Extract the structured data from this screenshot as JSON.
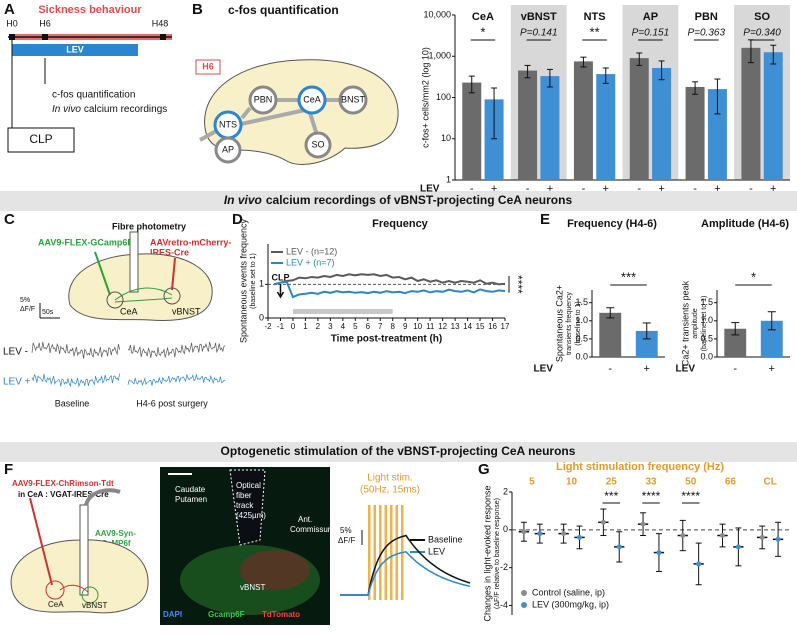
{
  "panels": {
    "A": {
      "letter": "A",
      "title": "Sickness behaviour",
      "timepoints": [
        "H0",
        "H6",
        "H48"
      ],
      "treatment": "LEV",
      "readout": "c-fos quantification",
      "readout_2_emphasis": "In vivo",
      "readout_2": "calcium recordings",
      "model": "CLP"
    },
    "B": {
      "letter": "B",
      "title": "c-fos quantification",
      "timepoint": "H6",
      "regions": [
        "NTS",
        "PBN",
        "CeA",
        "BNST",
        "AP",
        "SO"
      ]
    },
    "C": {
      "letter": "C",
      "method": "Fibre photometry",
      "virus_1": "AAV9-FLEX-GCamp6F",
      "virus_2": "AAVretro-mCherry-",
      "virus_2_line_2": "IRES-Cre",
      "regions": [
        "CeA",
        "vBNST"
      ],
      "scale_y": "5%",
      "scale_y_unit": "ΔF/F",
      "scale_x": "50s",
      "rows": [
        "LEV -",
        "LEV +"
      ],
      "columns": [
        "Baseline",
        "H4-6 post surgery"
      ]
    },
    "D": {
      "letter": "D"
    },
    "E": {
      "letter": "E"
    },
    "F": {
      "letter": "F",
      "virus_1": "AAV9-FLEX-ChRimson-Tdt",
      "virus_1_target": "in CeA : VGAT-IRES-Cre",
      "virus_2": "AAV9-Syn-",
      "virus_2_line_2": "GCaMP6f",
      "regions": [
        "CeA",
        "vBNST"
      ],
      "image_labels": [
        "Caudate",
        "Putamen",
        "Optical",
        "fiber",
        "track",
        "(425µm)",
        "Ant.",
        "Commissure",
        "vBNST"
      ],
      "stains": [
        "DAPI",
        "Gcamp6F",
        "TdTomato"
      ],
      "stim": "Light stim.",
      "stim_params": "(50Hz, 15ms)",
      "scale_y": "5%",
      "scale_y_unit": "ΔF/F",
      "legend": [
        "Baseline",
        "LEV"
      ]
    },
    "G": {
      "letter": "G"
    }
  },
  "sections": [
    {
      "emphasis": "In vivo",
      "text": "calcium recordings of vBNST-projecting CeA neurons"
    },
    {
      "text": "Optogenetic stimulation of the vBNST-projecting CeA neurons"
    }
  ],
  "chart_data": [
    {
      "type": "bar",
      "ylabel": "c-fos+ cells/mm2 (log 10)",
      "log_scale": true,
      "categories": [
        "CeA",
        "vBNST",
        "NTS",
        "AP",
        "PBN",
        "SO"
      ],
      "series": [
        {
          "name": "-",
          "color": "#6b6b6b",
          "values": [
            230,
            450,
            750,
            900,
            180,
            1600
          ],
          "errors": [
            100,
            150,
            200,
            300,
            60,
            900
          ]
        },
        {
          "name": "+",
          "color": "#3f8fd4",
          "values": [
            90,
            330,
            370,
            520,
            160,
            1250
          ],
          "errors": [
            80,
            150,
            150,
            250,
            120,
            600
          ]
        }
      ],
      "significance": [
        "*",
        "P=0.141",
        "**",
        "P=0.151",
        "P=0.363",
        "P=0.340"
      ],
      "shaded": [
        false,
        true,
        false,
        true,
        false,
        true
      ],
      "xlabel": "LEV",
      "ylim": [
        1,
        10000
      ],
      "yticks": [
        1,
        10,
        100,
        {
          "value": 1000,
          "label": "1,000"
        },
        {
          "value": 10000,
          "label": "10,000"
        }
      ]
    },
    {
      "type": "line",
      "title": "Frequency",
      "ylabel": "Spontaneous events frequency",
      "ylabel_note": "(baseline set to 1)",
      "xlabel": "Time post-treatment (h)",
      "x": [
        -1.5,
        -1,
        -0.5,
        0,
        0.5,
        1,
        1.5,
        2,
        2.5,
        3,
        3.5,
        4,
        4.5,
        5,
        5.5,
        6,
        6.5,
        7,
        7.5,
        8,
        8.5,
        9,
        9.5,
        10,
        10.5,
        11,
        11.5,
        12,
        12.5,
        13,
        13.5,
        14,
        14.5,
        15,
        15.5,
        16,
        16.5,
        17
      ],
      "series": [
        {
          "name": "LEV - (n=12)",
          "color": "#5a5a5a",
          "values": [
            1.0,
            1.05,
            1.1,
            1.12,
            1.2,
            1.18,
            1.22,
            1.2,
            1.25,
            1.22,
            1.28,
            1.25,
            1.3,
            1.27,
            1.3,
            1.28,
            1.3,
            1.25,
            1.28,
            1.2,
            1.22,
            1.15,
            1.2,
            1.1,
            1.15,
            1.08,
            1.12,
            1.05,
            1.1,
            1.05,
            1.1,
            1.08,
            1.05,
            1.12,
            1.02,
            1.05,
            1.0,
            1.02
          ]
        },
        {
          "name": "LEV + (n=7)",
          "color": "#2b86c5",
          "values": [
            1.0,
            1.05,
            1.08,
            0.62,
            0.7,
            0.72,
            0.75,
            0.72,
            0.78,
            0.75,
            0.8,
            0.76,
            0.78,
            0.75,
            0.77,
            0.74,
            0.78,
            0.75,
            0.8,
            0.76,
            0.78,
            0.74,
            0.8,
            0.78,
            0.82,
            0.76,
            0.8,
            0.78,
            0.84,
            0.8,
            0.78,
            0.82,
            0.76,
            0.85,
            0.8,
            0.78,
            0.82,
            0.8
          ]
        }
      ],
      "xlim": [
        -2,
        17
      ],
      "xticks": [
        -2,
        -1,
        0,
        1,
        2,
        3,
        4,
        5,
        6,
        7,
        8,
        9,
        10,
        11,
        12,
        13,
        14,
        15,
        16,
        17
      ],
      "ylim": [
        0,
        2.2
      ],
      "yticks": [
        0,
        1
      ],
      "reference_line": 1,
      "shade": [
        0,
        8
      ],
      "event": {
        "label": "CLP",
        "x": -1
      },
      "significance": "****"
    },
    {
      "type": "bar",
      "title": "Frequency (H4-6)",
      "ylabel": "Spontaneous Ca2+",
      "ylabel_note": "transients frequency",
      "ylabel_note_2": "(baseline to 1)",
      "categories": [
        "-",
        "+"
      ],
      "values": [
        1.22,
        0.72
      ],
      "errors": [
        0.14,
        0.22
      ],
      "colors": [
        "#6b6b6b",
        "#3f8fd4"
      ],
      "xlabel": "LEV",
      "significance": "***",
      "ylim": [
        0,
        1.85
      ],
      "yticks": [
        {
          "value": 0,
          "label": "0.0"
        },
        {
          "value": 0.5,
          "label": "0.5"
        },
        {
          "value": 1,
          "label": "1.0"
        },
        {
          "value": 1.5,
          "label": "1.5"
        }
      ]
    },
    {
      "type": "bar",
      "title": "Amplitude (H4-6)",
      "ylabel": "Ca2+ transients peak",
      "ylabel_note": "amplitude",
      "ylabel_note_2": "(baseline set to 1)",
      "categories": [
        "-",
        "+"
      ],
      "values": [
        0.78,
        1.0
      ],
      "errors": [
        0.17,
        0.25
      ],
      "colors": [
        "#6b6b6b",
        "#3f8fd4"
      ],
      "xlabel": "LEV",
      "significance": "*",
      "ylim": [
        0,
        1.85
      ],
      "yticks": [
        {
          "value": 0,
          "label": "0.0"
        },
        {
          "value": 0.5,
          "label": "0.5"
        },
        {
          "value": 1,
          "label": "1.0"
        },
        {
          "value": 1.5,
          "label": "1.5"
        }
      ]
    },
    {
      "type": "errorbar",
      "title": "Light stimulation frequency (Hz)",
      "label_color": "#e39b2d",
      "ylabel": "Changes in light-evoked response",
      "ylabel_note": "(ΔF/F relative to baseline response)",
      "categories": [
        "5",
        "10",
        "25",
        "33",
        "50",
        "66",
        "CL"
      ],
      "series": [
        {
          "name": "Control (saline, ip)",
          "color": "#8c8c8c",
          "values": [
            -0.1,
            -0.2,
            0.4,
            0.3,
            -0.3,
            -0.3,
            -0.4
          ],
          "errors": [
            0.5,
            0.5,
            0.7,
            0.6,
            0.8,
            0.6,
            0.6
          ]
        },
        {
          "name": "LEV (300mg/kg, ip)",
          "color": "#3f8fd4",
          "values": [
            -0.2,
            -0.4,
            -0.9,
            -1.2,
            -1.8,
            -0.9,
            -0.5
          ],
          "errors": [
            0.5,
            0.6,
            0.8,
            1.0,
            1.1,
            1.0,
            0.9
          ]
        }
      ],
      "significance": [
        null,
        null,
        "***",
        "****",
        "****",
        null,
        null
      ],
      "reference_line": 0,
      "ylim": [
        -4.5,
        2
      ],
      "yticks": [
        -4,
        -2,
        0,
        2
      ]
    }
  ]
}
